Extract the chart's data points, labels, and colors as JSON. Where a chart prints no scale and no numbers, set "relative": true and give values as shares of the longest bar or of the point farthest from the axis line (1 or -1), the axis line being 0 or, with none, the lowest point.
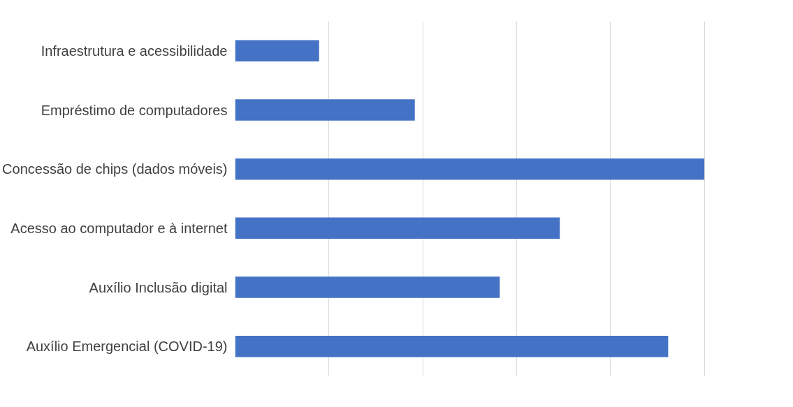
{
  "chart_data": {
    "type": "bar",
    "orientation": "horizontal",
    "relative": true,
    "grid": "x",
    "categories": [
      "Infraestrutura e acessibilidade",
      "Empréstimo de computadores",
      "Concessão de chips (dados móveis)",
      "Acesso ao computador e à internet",
      "Auxílio Inclusão digital",
      "Auxílio Emergencial (COVID-19)"
    ],
    "values": [
      0.179,
      0.383,
      1,
      0.692,
      0.564,
      0.923
    ],
    "color": "#4472c4"
  }
}
